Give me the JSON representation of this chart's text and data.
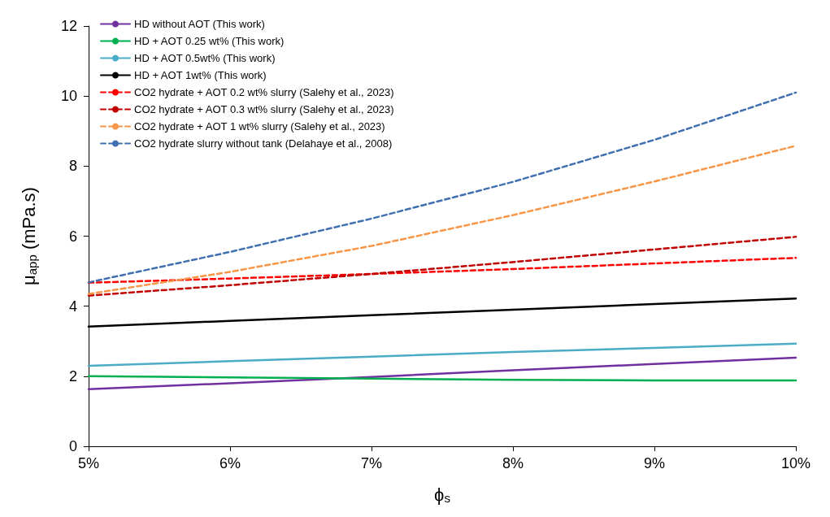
{
  "chart_data": {
    "type": "line",
    "xlabel": "ϕ$_{s}$",
    "ylabel": "μ$_{app}$ (mPa.s)",
    "x": [
      5,
      6,
      7,
      8,
      9,
      10
    ],
    "xlim": [
      5,
      10
    ],
    "xticks": [
      {
        "value": 5,
        "label": "5%"
      },
      {
        "value": 6,
        "label": "6%"
      },
      {
        "value": 7,
        "label": "7%"
      },
      {
        "value": 8,
        "label": "8%"
      },
      {
        "value": 9,
        "label": "9%"
      },
      {
        "value": 10,
        "label": "10%"
      }
    ],
    "ylim": [
      0,
      12
    ],
    "yticks": [
      0,
      2,
      4,
      6,
      8,
      10,
      12
    ],
    "grid": false,
    "legend": "top left",
    "marker": "none",
    "series": [
      {
        "name": "HD without AOT (This work)",
        "color": "#7030a0",
        "line_style": "solid",
        "values": [
          1.63,
          1.8,
          1.98,
          2.17,
          2.35,
          2.53
        ]
      },
      {
        "name": "HD + AOT 0.25 wt% (This work)",
        "color": "#00b050",
        "line_style": "solid",
        "values": [
          2.0,
          1.97,
          1.93,
          1.9,
          1.88,
          1.88
        ]
      },
      {
        "name": "HD + AOT 0.5wt% (This work)",
        "color": "#4bacc6",
        "line_style": "solid",
        "values": [
          2.3,
          2.43,
          2.56,
          2.69,
          2.81,
          2.93
        ]
      },
      {
        "name": "HD + AOT 1wt% (This work)",
        "color": "#000000",
        "line_style": "solid",
        "values": [
          3.42,
          3.58,
          3.74,
          3.9,
          4.06,
          4.22
        ]
      },
      {
        "name": "CO2 hydrate + AOT 0.2 wt% slurry (Salehy et al., 2023)",
        "color": "#ff0000",
        "line_style": "dashed",
        "values": [
          4.67,
          4.79,
          4.92,
          5.06,
          5.22,
          5.38
        ]
      },
      {
        "name": "CO2 hydrate + AOT 0.3 wt% slurry (Salehy et al., 2023)",
        "color": "#c00000",
        "line_style": "dashed",
        "values": [
          4.3,
          4.6,
          4.92,
          5.26,
          5.62,
          5.98
        ]
      },
      {
        "name": "CO2 hydrate + AOT 1 wt% slurry (Salehy et al., 2023)",
        "color": "#f79646",
        "line_style": "dashed",
        "values": [
          4.35,
          4.98,
          5.72,
          6.6,
          7.56,
          8.58
        ]
      },
      {
        "name": "CO2 hydrate slurry without tank (Delahaye et al., 2008)",
        "color": "#4170b0",
        "line_style": "dashed",
        "values": [
          4.68,
          5.55,
          6.5,
          7.55,
          8.75,
          10.1
        ]
      }
    ]
  }
}
